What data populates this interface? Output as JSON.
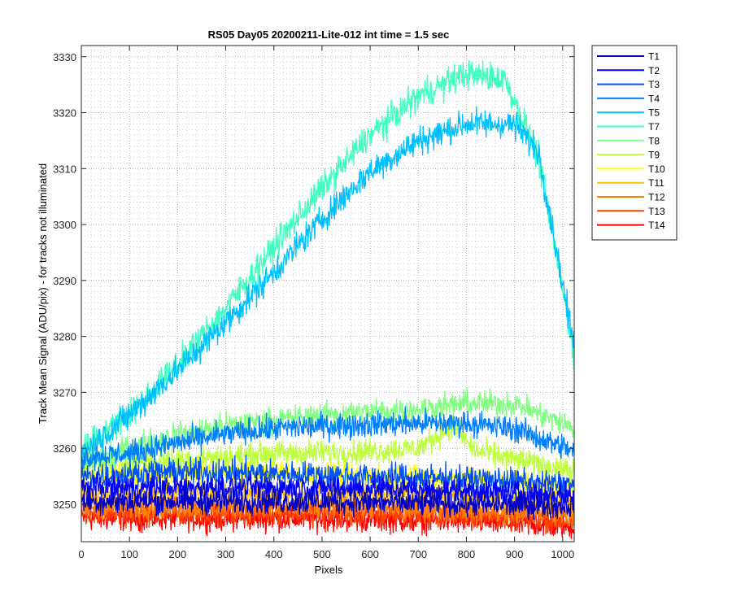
{
  "chart_data": {
    "type": "line",
    "title": "RS05 Day05 20200211-Lite-012 int time = 1.5 sec",
    "xlabel": "Pixels",
    "ylabel": "Track Mean Signal (ADU/pix) - for tracks not illuminated",
    "xlim": [
      0,
      1024
    ],
    "ylim": [
      3243.3,
      3332
    ],
    "xticks": [
      0,
      100,
      200,
      300,
      400,
      500,
      600,
      700,
      800,
      900,
      1000
    ],
    "yticks": [
      3250,
      3260,
      3270,
      3280,
      3290,
      3300,
      3310,
      3320,
      3330
    ],
    "grid": "on (major and minor, dotted)",
    "legend_position": "outside-right-top",
    "series": [
      {
        "name": "T1",
        "color": "#0000c8",
        "noise": 2.2,
        "x": [
          0,
          200,
          400,
          600,
          800,
          1024
        ],
        "y": [
          3250.5,
          3250.5,
          3250.5,
          3250.3,
          3250.0,
          3249.7
        ]
      },
      {
        "name": "T2",
        "color": "#0000ff",
        "noise": 2.2,
        "x": [
          0,
          200,
          400,
          600,
          800,
          1024
        ],
        "y": [
          3253.0,
          3253.0,
          3253.0,
          3252.8,
          3252.5,
          3251.5
        ]
      },
      {
        "name": "T3",
        "color": "#0050ff",
        "noise": 2.3,
        "x": [
          0,
          200,
          400,
          600,
          800,
          1024
        ],
        "y": [
          3255.0,
          3255.8,
          3255.5,
          3255.0,
          3254.5,
          3253.5
        ]
      },
      {
        "name": "T4",
        "color": "#0080ff",
        "noise": 2.2,
        "x": [
          0,
          100,
          200,
          300,
          400,
          500,
          600,
          700,
          800,
          900,
          1024
        ],
        "y": [
          3258.5,
          3259.0,
          3261.0,
          3262.5,
          3263.5,
          3264.0,
          3264.3,
          3264.5,
          3264.5,
          3263.5,
          3259.5
        ]
      },
      {
        "name": "T5",
        "color": "#00c0ff",
        "noise": 2.5,
        "x": [
          0,
          100,
          200,
          300,
          400,
          500,
          600,
          700,
          800,
          900,
          950,
          1024
        ],
        "y": [
          3259.0,
          3266.0,
          3274.0,
          3282.5,
          3291.5,
          3301.0,
          3309.5,
          3315.0,
          3318.0,
          3318.0,
          3313.0,
          3278.0
        ]
      },
      {
        "name": "T7",
        "color": "#40ffc0",
        "noise": 2.6,
        "x": [
          0,
          100,
          200,
          300,
          400,
          500,
          600,
          700,
          800,
          880,
          950,
          1024
        ],
        "y": [
          3260.0,
          3266.0,
          3275.0,
          3285.0,
          3296.0,
          3306.5,
          3316.0,
          3323.0,
          3327.0,
          3326.0,
          3312.0,
          3277.0
        ]
      },
      {
        "name": "T8",
        "color": "#80ff80",
        "noise": 2.2,
        "x": [
          0,
          100,
          200,
          300,
          400,
          500,
          600,
          700,
          800,
          900,
          1024
        ],
        "y": [
          3257.0,
          3260.0,
          3262.5,
          3264.0,
          3265.0,
          3266.0,
          3266.5,
          3267.0,
          3268.0,
          3268.0,
          3263.5
        ]
      },
      {
        "name": "T9",
        "color": "#c0ff40",
        "noise": 2.2,
        "x": [
          0,
          200,
          400,
          600,
          700,
          770,
          820,
          900,
          1024
        ],
        "y": [
          3257.0,
          3258.0,
          3259.0,
          3259.5,
          3260.0,
          3264.0,
          3259.5,
          3258.0,
          3256.0
        ]
      },
      {
        "name": "T10",
        "color": "#ffff00",
        "noise": 2.2,
        "x": [
          0,
          200,
          400,
          600,
          800,
          1024
        ],
        "y": [
          3255.0,
          3255.5,
          3255.5,
          3255.0,
          3254.5,
          3253.0
        ]
      },
      {
        "name": "T11",
        "color": "#ffc000",
        "noise": 2.2,
        "x": [
          0,
          200,
          400,
          600,
          800,
          1024
        ],
        "y": [
          3251.5,
          3252.0,
          3252.0,
          3252.0,
          3251.5,
          3250.5
        ]
      },
      {
        "name": "T12",
        "color": "#ff8000",
        "noise": 2.2,
        "x": [
          0,
          200,
          400,
          600,
          800,
          1024
        ],
        "y": [
          3249.5,
          3249.5,
          3249.5,
          3249.5,
          3249.0,
          3248.5
        ]
      },
      {
        "name": "T13",
        "color": "#ff4000",
        "noise": 2.2,
        "x": [
          0,
          200,
          400,
          600,
          800,
          1024
        ],
        "y": [
          3248.5,
          3248.5,
          3248.5,
          3248.3,
          3248.0,
          3247.0
        ]
      },
      {
        "name": "T14",
        "color": "#ff0000",
        "noise": 2.2,
        "x": [
          0,
          200,
          400,
          600,
          800,
          1024
        ],
        "y": [
          3247.5,
          3247.5,
          3247.5,
          3247.3,
          3247.0,
          3246.0
        ]
      }
    ]
  }
}
